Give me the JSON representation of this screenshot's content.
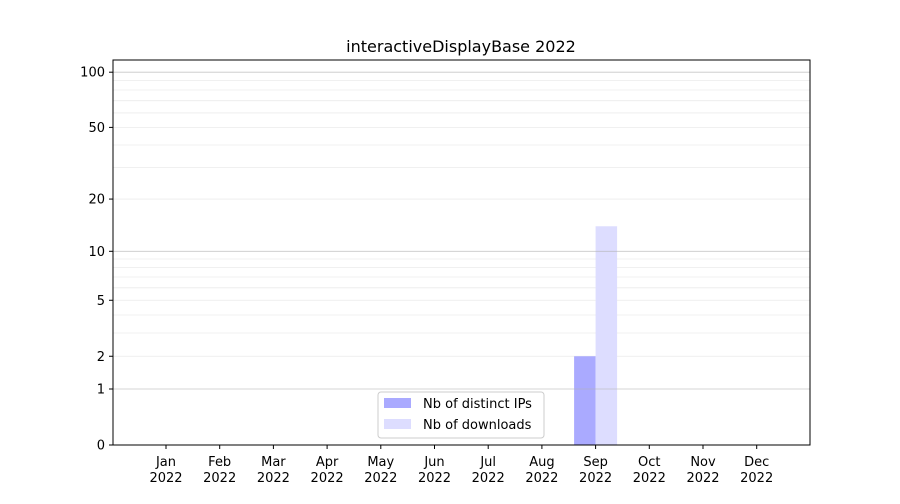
{
  "chart_data": {
    "type": "bar",
    "title": "interactiveDisplayBase 2022",
    "xlabel": "",
    "ylabel": "",
    "yscale": "symlog (log10(1+y))",
    "ylim": [
      0,
      116
    ],
    "yticks": [
      0,
      1,
      2,
      5,
      10,
      20,
      50,
      100
    ],
    "grid": true,
    "legend_placement": "lower-center",
    "categories": [
      "Jan\n2022",
      "Feb\n2022",
      "Mar\n2022",
      "Apr\n2022",
      "May\n2022",
      "Jun\n2022",
      "Jul\n2022",
      "Aug\n2022",
      "Sep\n2022",
      "Oct\n2022",
      "Nov\n2022",
      "Dec\n2022"
    ],
    "series": [
      {
        "name": "Nb of distinct IPs",
        "color": "#aaaaff",
        "values": [
          0,
          0,
          0,
          0,
          0,
          0,
          0,
          0,
          2,
          0,
          0,
          0
        ]
      },
      {
        "name": "Nb of downloads",
        "color": "#ddddff",
        "values": [
          0,
          0,
          0,
          0,
          0,
          0,
          0,
          0,
          14,
          0,
          0,
          0
        ]
      }
    ]
  }
}
